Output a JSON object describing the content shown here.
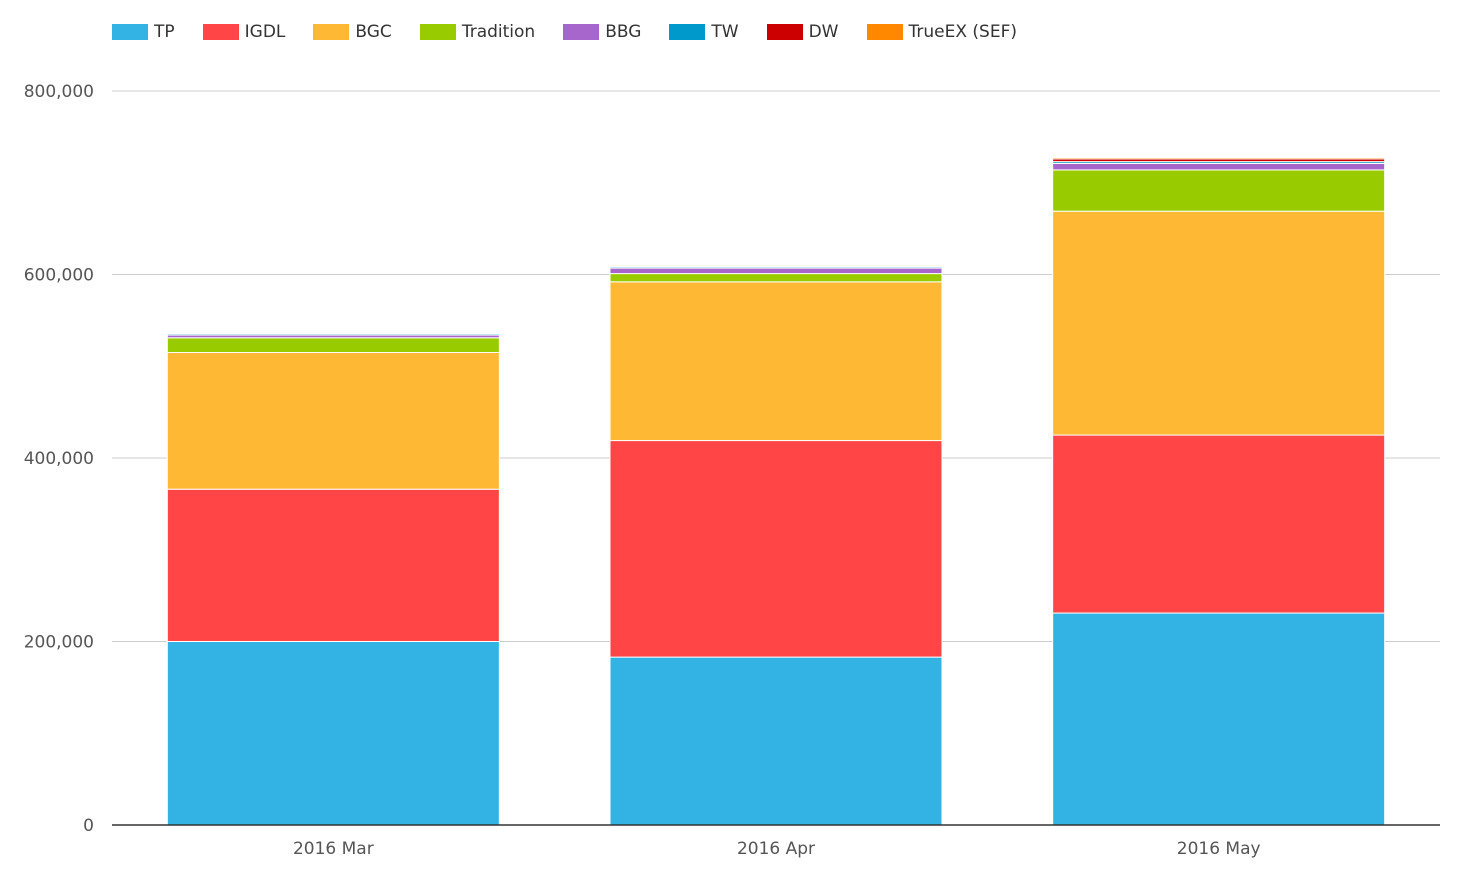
{
  "chart_data": {
    "type": "bar",
    "stacked": true,
    "categories": [
      "2016 Mar",
      "2016 Apr",
      "2016 May"
    ],
    "series": [
      {
        "name": "TP",
        "color": "#33b3e3",
        "values": [
          200000,
          183000,
          231000
        ]
      },
      {
        "name": "IGDL",
        "color": "#ff4545",
        "values": [
          166000,
          236000,
          194000
        ]
      },
      {
        "name": "BGC",
        "color": "#ffb833",
        "values": [
          149000,
          173000,
          244000
        ]
      },
      {
        "name": "Tradition",
        "color": "#99cc00",
        "values": [
          16000,
          9000,
          45000
        ]
      },
      {
        "name": "BBG",
        "color": "#a666cc",
        "values": [
          3000,
          6000,
          7000
        ]
      },
      {
        "name": "TW",
        "color": "#0099cc",
        "values": [
          1500,
          1500,
          2000
        ]
      },
      {
        "name": "DW",
        "color": "#cc0000",
        "values": [
          500,
          800,
          3000
        ]
      },
      {
        "name": "TrueEX (SEF)",
        "color": "#ff8800",
        "values": [
          500,
          1200,
          1500
        ]
      }
    ],
    "ylim": [
      0,
      800000
    ],
    "yticks": [
      0,
      200000,
      400000,
      600000,
      800000
    ],
    "ytick_labels": [
      "0",
      "200,000",
      "400,000",
      "600,000",
      "800,000"
    ],
    "grid": true,
    "legend_position": "top-left"
  }
}
